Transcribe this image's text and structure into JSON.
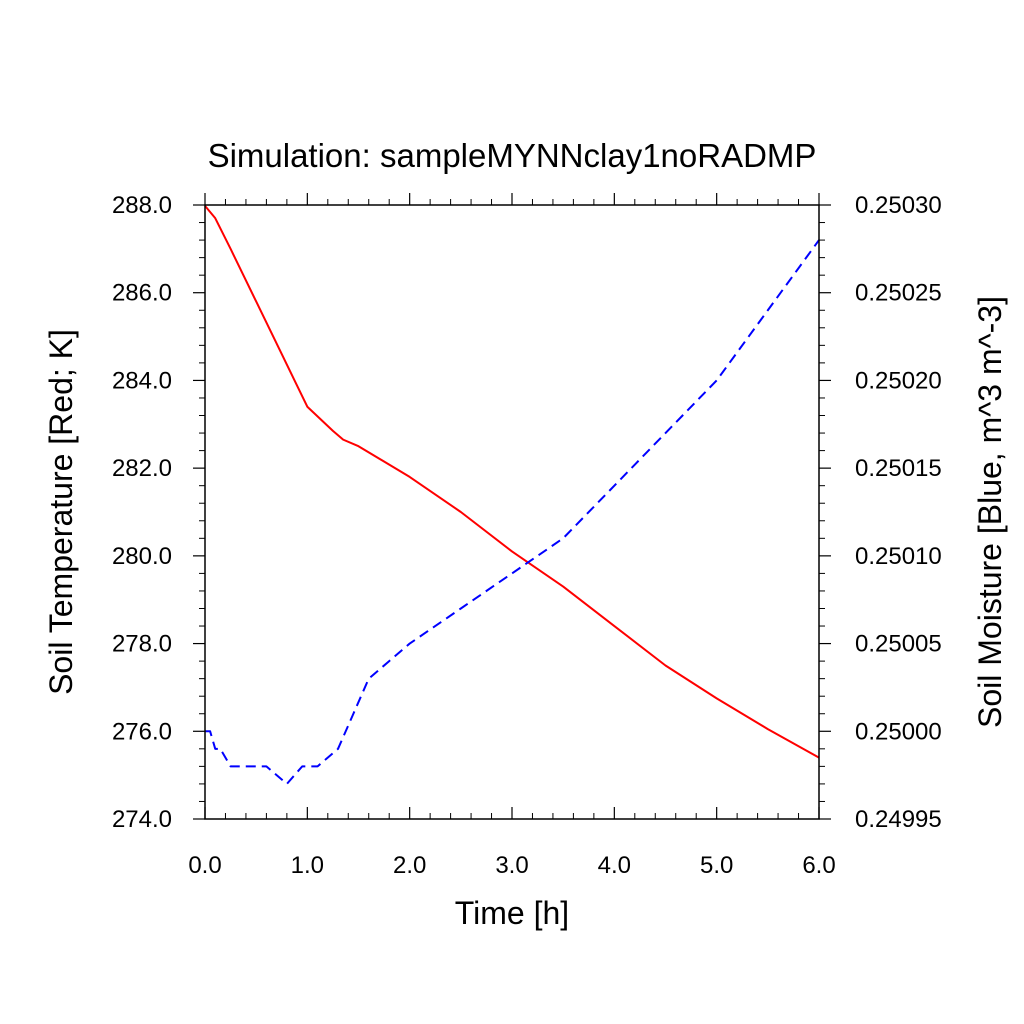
{
  "chart_data": {
    "type": "line",
    "title": "Simulation: sampleMYNNclay1noRADMP",
    "xlabel": "Time [h]",
    "ylabel_left": "Soil Temperature [Red; K]",
    "ylabel_right": "Soil Moisture [Blue, m^3 m^-3]",
    "xlim": [
      0,
      6
    ],
    "ylim_left": [
      274,
      288
    ],
    "ylim_right": [
      0.24995,
      0.2503
    ],
    "x_ticks": [
      "0.0",
      "1.0",
      "2.0",
      "3.0",
      "4.0",
      "5.0",
      "6.0"
    ],
    "y_left_ticks": [
      "274.0",
      "276.0",
      "278.0",
      "280.0",
      "282.0",
      "284.0",
      "286.0",
      "288.0"
    ],
    "y_right_ticks": [
      "0.24995",
      "0.25000",
      "0.25005",
      "0.25010",
      "0.25015",
      "0.25020",
      "0.25025",
      "0.25030"
    ],
    "grid": false,
    "series": [
      {
        "axis": "left",
        "color": "#ff0000",
        "style": "solid",
        "x": [
          0.0,
          0.1,
          0.25,
          0.5,
          0.75,
          1.0,
          1.25,
          1.35,
          1.5,
          2.0,
          2.5,
          3.0,
          3.5,
          4.0,
          4.5,
          5.0,
          5.5,
          6.0
        ],
        "y": [
          287.98,
          287.7,
          287.0,
          285.8,
          284.6,
          283.4,
          282.85,
          282.65,
          282.5,
          281.8,
          281.0,
          280.1,
          279.3,
          278.4,
          277.5,
          276.75,
          276.05,
          275.4
        ]
      },
      {
        "axis": "right",
        "color": "#0000ff",
        "style": "dashed",
        "x": [
          0.0,
          0.05,
          0.1,
          0.15,
          0.25,
          0.4,
          0.6,
          0.8,
          0.95,
          1.1,
          1.3,
          1.45,
          1.6,
          1.8,
          2.0,
          2.5,
          3.0,
          3.5,
          4.0,
          4.5,
          5.0,
          5.5,
          6.0
        ],
        "y": [
          0.25,
          0.25,
          0.24999,
          0.24999,
          0.24998,
          0.24998,
          0.24998,
          0.24997,
          0.24998,
          0.24998,
          0.24999,
          0.25001,
          0.25003,
          0.25004,
          0.25005,
          0.25007,
          0.25009,
          0.25011,
          0.25014,
          0.25017,
          0.2502,
          0.25024,
          0.25028
        ]
      }
    ]
  }
}
